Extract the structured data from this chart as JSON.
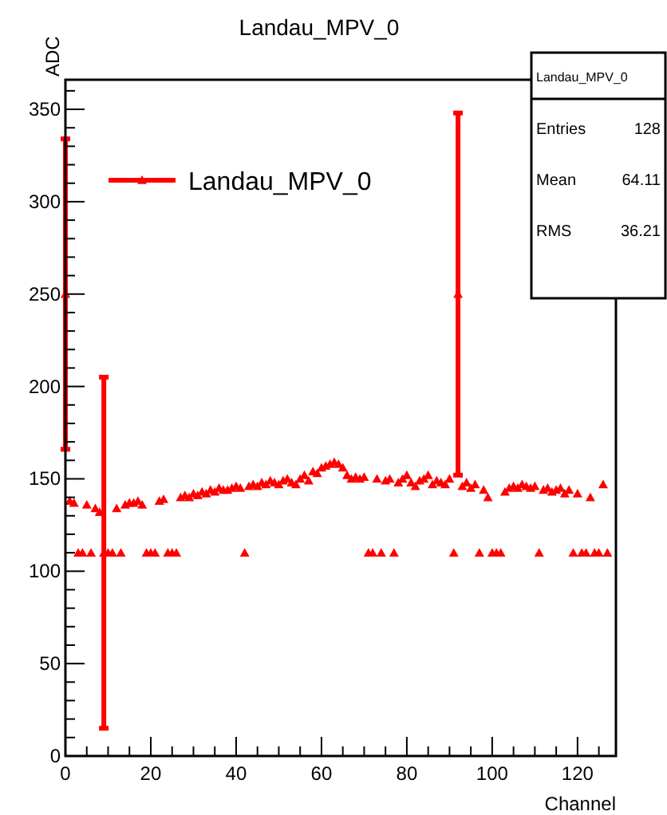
{
  "chart_data": {
    "type": "scatter",
    "title": "Landau_MPV_0",
    "xlabel": "Channel",
    "ylabel": "ADC",
    "x": [
      0,
      1,
      2,
      3,
      4,
      5,
      6,
      7,
      8,
      9,
      10,
      11,
      12,
      13,
      14,
      15,
      16,
      17,
      18,
      19,
      20,
      21,
      22,
      23,
      24,
      25,
      26,
      27,
      28,
      29,
      30,
      31,
      32,
      33,
      34,
      35,
      36,
      37,
      38,
      39,
      40,
      41,
      42,
      43,
      44,
      45,
      46,
      47,
      48,
      49,
      50,
      51,
      52,
      53,
      54,
      55,
      56,
      57,
      58,
      59,
      60,
      61,
      62,
      63,
      64,
      65,
      66,
      67,
      68,
      69,
      70,
      71,
      72,
      73,
      74,
      75,
      76,
      77,
      78,
      79,
      80,
      81,
      82,
      83,
      84,
      85,
      86,
      87,
      88,
      89,
      90,
      91,
      92,
      93,
      94,
      95,
      96,
      97,
      98,
      99,
      100,
      101,
      102,
      103,
      104,
      105,
      106,
      107,
      108,
      109,
      110,
      111,
      112,
      113,
      114,
      115,
      116,
      117,
      118,
      119,
      120,
      121,
      122,
      123,
      124,
      125,
      126,
      127
    ],
    "series": [
      {
        "name": "Landau_MPV_0",
        "color": "#ff0000",
        "values": [
          250,
          138,
          137,
          110,
          110,
          136,
          110,
          134,
          132,
          110,
          110,
          110,
          134,
          110,
          136,
          137,
          137,
          138,
          136,
          110,
          110,
          110,
          138,
          139,
          110,
          110,
          110,
          140,
          141,
          140,
          142,
          141,
          143,
          142,
          144,
          143,
          145,
          144,
          144,
          145,
          146,
          145,
          110,
          146,
          147,
          146,
          148,
          147,
          149,
          148,
          147,
          149,
          150,
          148,
          147,
          150,
          152,
          149,
          154,
          153,
          156,
          157,
          158,
          159,
          158,
          156,
          152,
          150,
          151,
          150,
          151,
          110,
          110,
          150,
          110,
          149,
          150,
          110,
          148,
          150,
          152,
          148,
          146,
          149,
          150,
          152,
          147,
          149,
          148,
          147,
          150,
          110,
          250,
          146,
          148,
          145,
          147,
          110,
          144,
          140,
          110,
          110,
          110,
          143,
          145,
          146,
          145,
          147,
          146,
          145,
          146,
          110,
          144,
          145,
          143,
          144,
          145,
          142,
          144,
          110,
          142,
          110,
          110,
          140,
          110,
          110,
          147,
          110
        ],
        "errors": [
          84,
          null,
          null,
          null,
          null,
          null,
          null,
          null,
          null,
          95,
          null,
          null,
          null,
          null,
          null,
          null,
          null,
          null,
          null,
          null,
          null,
          null,
          null,
          null,
          null,
          null,
          null,
          null,
          null,
          null,
          null,
          null,
          null,
          null,
          null,
          null,
          null,
          null,
          null,
          null,
          null,
          null,
          null,
          null,
          null,
          null,
          null,
          null,
          null,
          null,
          null,
          null,
          null,
          null,
          null,
          null,
          null,
          null,
          null,
          null,
          null,
          null,
          null,
          null,
          null,
          null,
          null,
          null,
          null,
          null,
          null,
          null,
          null,
          null,
          null,
          null,
          null,
          null,
          null,
          null,
          null,
          null,
          null,
          null,
          null,
          null,
          null,
          null,
          null,
          null,
          null,
          null,
          98,
          null,
          null,
          null,
          null,
          null,
          null,
          null,
          null,
          null,
          null,
          null,
          null,
          null,
          null,
          null,
          null,
          null,
          null,
          null,
          null,
          null,
          null,
          null,
          null,
          null,
          null,
          null,
          null,
          null,
          null,
          null,
          null,
          null,
          null,
          null
        ]
      }
    ],
    "xlim": [
      0,
      129
    ],
    "ylim": [
      0,
      366
    ],
    "xticks": [
      0,
      {
        "value": 5,
        "label": null
      },
      {
        "value": 10,
        "label": null
      },
      {
        "value": 15,
        "label": null
      },
      20,
      {
        "value": 25,
        "label": null
      },
      {
        "value": 30,
        "label": null
      },
      {
        "value": 35,
        "label": null
      },
      40,
      {
        "value": 45,
        "label": null
      },
      {
        "value": 50,
        "label": null
      },
      {
        "value": 55,
        "label": null
      },
      60,
      {
        "value": 65,
        "label": null
      },
      {
        "value": 70,
        "label": null
      },
      {
        "value": 75,
        "label": null
      },
      80,
      {
        "value": 85,
        "label": null
      },
      {
        "value": 90,
        "label": null
      },
      {
        "value": 95,
        "label": null
      },
      100,
      {
        "value": 105,
        "label": null
      },
      {
        "value": 110,
        "label": null
      },
      {
        "value": 115,
        "label": null
      },
      120,
      {
        "value": 125,
        "label": null
      }
    ],
    "yticks": [
      0,
      {
        "value": 10,
        "label": null
      },
      {
        "value": 20,
        "label": null
      },
      {
        "value": 30,
        "label": null
      },
      {
        "value": 40,
        "label": null
      },
      50,
      {
        "value": 60,
        "label": null
      },
      {
        "value": 70,
        "label": null
      },
      {
        "value": 80,
        "label": null
      },
      {
        "value": 90,
        "label": null
      },
      100,
      {
        "value": 110,
        "label": null
      },
      {
        "value": 120,
        "label": null
      },
      {
        "value": 130,
        "label": null
      },
      {
        "value": 140,
        "label": null
      },
      150,
      {
        "value": 160,
        "label": null
      },
      {
        "value": 170,
        "label": null
      },
      {
        "value": 180,
        "label": null
      },
      {
        "value": 190,
        "label": null
      },
      200,
      {
        "value": 210,
        "label": null
      },
      {
        "value": 220,
        "label": null
      },
      {
        "value": 230,
        "label": null
      },
      {
        "value": 240,
        "label": null
      },
      250,
      {
        "value": 260,
        "label": null
      },
      {
        "value": 270,
        "label": null
      },
      {
        "value": 280,
        "label": null
      },
      {
        "value": 290,
        "label": null
      },
      300,
      {
        "value": 310,
        "label": null
      },
      {
        "value": 320,
        "label": null
      },
      {
        "value": 330,
        "label": null
      },
      {
        "value": 340,
        "label": null
      },
      350,
      {
        "value": 360,
        "label": null
      }
    ],
    "marker": "triangle",
    "grid": false,
    "legend": "top left",
    "annotations": [
      "Landau_MPV_0",
      "Entries",
      "128",
      "Mean",
      "64.11",
      "RMS",
      "36.21"
    ]
  }
}
